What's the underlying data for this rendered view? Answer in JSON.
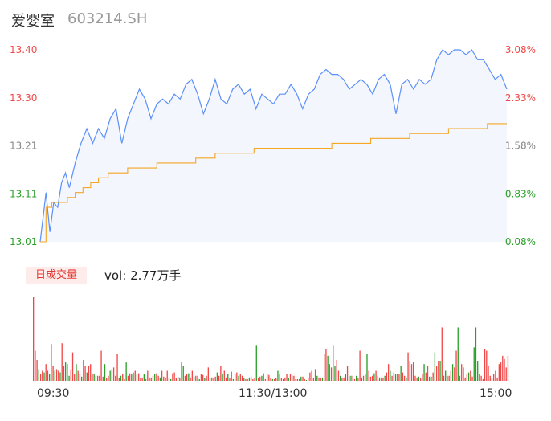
{
  "header": {
    "name": "爱婴室",
    "code": "603214.SH"
  },
  "volume_panel": {
    "tab_label": "日成交量",
    "vol_prefix": "vol:",
    "vol_value": "2.77万手"
  },
  "colors": {
    "price_line": "#5b8ff9",
    "avg_line": "#f5a623",
    "up": "#f04848",
    "down": "#2aa02a",
    "area_fill": "#f3f6fd"
  },
  "chart_data": [
    {
      "type": "line",
      "title": "",
      "base_price": 13.01,
      "y_left_ticks": [
        "13.40",
        "13.30",
        "13.21",
        "13.11",
        "13.01"
      ],
      "y_right_ticks": [
        "3.08%",
        "2.33%",
        "1.58%",
        "0.83%",
        "0.08%"
      ],
      "ylim": [
        13.01,
        13.4
      ],
      "x_tick_labels": [
        "09:30",
        "11:30/13:00",
        "15:00"
      ],
      "xlim": [
        0,
        240
      ],
      "series": [
        {
          "name": "",
          "role": "price",
          "x": [
            0,
            3,
            5,
            7,
            9,
            11,
            13,
            15,
            18,
            21,
            24,
            27,
            30,
            33,
            36,
            39,
            42,
            45,
            48,
            51,
            54,
            57,
            60,
            63,
            66,
            69,
            72,
            75,
            78,
            81,
            84,
            87,
            90,
            93,
            96,
            99,
            102,
            105,
            108,
            111,
            114,
            117,
            120,
            123,
            126,
            129,
            132,
            135,
            138,
            141,
            144,
            147,
            150,
            153,
            156,
            159,
            162,
            165,
            168,
            171,
            174,
            177,
            180,
            183,
            186,
            189,
            192,
            195,
            198,
            201,
            204,
            207,
            210,
            213,
            216,
            219,
            222,
            225,
            228,
            231,
            234,
            237,
            240
          ],
          "values": [
            13.01,
            13.11,
            13.03,
            13.09,
            13.08,
            13.13,
            13.15,
            13.12,
            13.17,
            13.21,
            13.24,
            13.21,
            13.24,
            13.22,
            13.26,
            13.28,
            13.21,
            13.26,
            13.29,
            13.32,
            13.3,
            13.26,
            13.29,
            13.3,
            13.29,
            13.31,
            13.3,
            13.33,
            13.34,
            13.31,
            13.27,
            13.3,
            13.34,
            13.3,
            13.29,
            13.32,
            13.33,
            13.31,
            13.32,
            13.28,
            13.31,
            13.3,
            13.29,
            13.31,
            13.31,
            13.33,
            13.31,
            13.28,
            13.31,
            13.32,
            13.35,
            13.36,
            13.35,
            13.35,
            13.34,
            13.32,
            13.33,
            13.34,
            13.33,
            13.31,
            13.34,
            13.35,
            13.33,
            13.27,
            13.33,
            13.34,
            13.32,
            13.34,
            13.33,
            13.34,
            13.38,
            13.4,
            13.39,
            13.4,
            13.4,
            13.39,
            13.4,
            13.38,
            13.38,
            13.36,
            13.34,
            13.35,
            13.32
          ]
        },
        {
          "name": "",
          "role": "average",
          "x": [
            0,
            3,
            6,
            10,
            14,
            18,
            22,
            26,
            30,
            35,
            40,
            45,
            50,
            60,
            70,
            80,
            90,
            100,
            110,
            120,
            130,
            140,
            150,
            160,
            170,
            180,
            190,
            200,
            210,
            220,
            230,
            240
          ],
          "values": [
            13.01,
            13.08,
            13.09,
            13.09,
            13.1,
            13.11,
            13.12,
            13.13,
            13.14,
            13.15,
            13.15,
            13.16,
            13.16,
            13.17,
            13.17,
            13.18,
            13.19,
            13.19,
            13.2,
            13.2,
            13.2,
            13.2,
            13.21,
            13.21,
            13.22,
            13.22,
            13.23,
            13.23,
            13.24,
            13.24,
            13.25,
            13.25
          ]
        }
      ]
    },
    {
      "type": "bar",
      "title": "",
      "ylim": [
        0,
        100
      ],
      "x_tick_labels": [
        "09:30",
        "11:30/13:00",
        "15:00"
      ],
      "values": [
        100,
        36,
        25,
        14,
        8,
        12,
        10,
        20,
        12,
        8,
        44,
        18,
        12,
        14,
        12,
        10,
        45,
        18,
        22,
        20,
        6,
        14,
        34,
        8,
        20,
        12,
        8,
        5,
        25,
        18,
        10,
        18,
        20,
        8,
        8,
        6,
        6,
        6,
        36,
        5,
        20,
        3,
        6,
        12,
        14,
        16,
        6,
        32,
        4,
        6,
        8,
        2,
        22,
        6,
        9,
        8,
        10,
        12,
        8,
        9,
        3,
        4,
        8,
        2,
        12,
        4,
        4,
        6,
        8,
        9,
        6,
        4,
        12,
        5,
        3,
        12,
        4,
        2,
        9,
        10,
        3,
        5,
        4,
        22,
        18,
        6,
        8,
        9,
        4,
        12,
        5,
        6,
        6,
        2,
        8,
        7,
        3,
        6,
        16,
        3,
        4,
        3,
        5,
        10,
        6,
        18,
        8,
        12,
        4,
        8,
        3,
        11,
        2,
        8,
        10,
        6,
        8,
        6,
        3,
        2,
        2,
        4,
        5,
        2,
        3,
        42,
        3,
        5,
        6,
        9,
        2,
        8,
        7,
        4,
        2,
        2,
        3,
        12,
        8,
        3,
        2,
        4,
        8,
        3,
        8,
        6,
        6,
        2,
        2,
        2,
        5,
        5,
        2,
        1,
        4,
        10,
        12,
        3,
        14,
        6,
        4,
        3,
        4,
        32,
        38,
        30,
        20,
        16,
        42,
        18,
        25,
        12,
        6,
        3,
        4,
        8,
        18,
        6,
        6,
        6,
        2,
        6,
        3,
        36,
        4,
        6,
        8,
        32,
        12,
        5,
        6,
        9,
        12,
        6,
        4,
        4,
        4,
        6,
        10,
        20,
        12,
        6,
        10,
        8,
        8,
        8,
        18,
        10,
        6,
        4,
        34,
        24,
        20,
        22,
        6,
        4,
        5,
        3,
        8,
        20,
        10,
        18,
        5,
        5,
        10,
        34,
        18,
        24,
        24,
        64,
        6,
        12,
        6,
        6,
        12,
        20,
        16,
        36,
        64,
        6,
        20,
        16,
        4,
        8,
        10,
        12,
        5,
        40,
        64,
        24,
        8,
        6,
        2,
        38,
        36,
        18,
        6,
        3,
        8,
        12,
        4,
        20,
        22,
        30,
        26,
        16,
        30
      ],
      "directions": [
        "u",
        "u",
        "u",
        "d",
        "u",
        "u",
        "d",
        "u",
        "u",
        "d",
        "u",
        "u",
        "d",
        "u",
        "u",
        "d",
        "u",
        "u",
        "d",
        "u",
        "d",
        "u",
        "u",
        "u",
        "d",
        "u",
        "u",
        "d",
        "u",
        "u",
        "d",
        "u",
        "u",
        "u",
        "d",
        "u",
        "u",
        "d",
        "u",
        "u",
        "d",
        "u",
        "u",
        "d",
        "u",
        "u",
        "d",
        "u",
        "u",
        "d",
        "u",
        "u",
        "d",
        "u",
        "u",
        "d",
        "u",
        "u",
        "d",
        "u",
        "u",
        "u",
        "d",
        "u",
        "u",
        "d",
        "u",
        "u",
        "d",
        "u",
        "u",
        "d",
        "u",
        "u",
        "d",
        "u",
        "u",
        "d",
        "u",
        "u",
        "u",
        "d",
        "u",
        "u",
        "d",
        "u",
        "u",
        "d",
        "u",
        "u",
        "d",
        "u",
        "u",
        "d",
        "u",
        "u",
        "d",
        "u",
        "u",
        "d",
        "u",
        "u",
        "u",
        "d",
        "u",
        "u",
        "d",
        "u",
        "u",
        "d",
        "u",
        "u",
        "d",
        "u",
        "u",
        "d",
        "u",
        "u",
        "d",
        "u",
        "u",
        "d",
        "u",
        "u",
        "u",
        "d",
        "u",
        "u",
        "d",
        "u",
        "u",
        "d",
        "u",
        "u",
        "d",
        "u",
        "u",
        "d",
        "u",
        "u",
        "d",
        "u",
        "u",
        "d",
        "u",
        "u",
        "u",
        "d",
        "u",
        "u",
        "d",
        "u",
        "u",
        "d",
        "u",
        "u",
        "d",
        "u",
        "u",
        "d",
        "u",
        "u",
        "d",
        "u",
        "u",
        "d",
        "u",
        "u",
        "u",
        "d",
        "u",
        "u",
        "d",
        "u",
        "u",
        "d",
        "u",
        "u",
        "d",
        "u",
        "u",
        "d",
        "u",
        "u",
        "d",
        "u",
        "u",
        "d",
        "u",
        "u",
        "u",
        "d",
        "u",
        "u",
        "d",
        "u",
        "u",
        "d",
        "u",
        "u",
        "d",
        "u",
        "u",
        "d",
        "u",
        "u",
        "d",
        "u",
        "u",
        "d",
        "u",
        "u",
        "u",
        "d",
        "u",
        "u",
        "d",
        "u",
        "u",
        "d",
        "u",
        "u",
        "d",
        "u",
        "u",
        "d",
        "u",
        "u",
        "d",
        "u",
        "u",
        "d",
        "u",
        "u",
        "u",
        "d",
        "u",
        "u",
        "d",
        "u",
        "u",
        "d",
        "u",
        "u",
        "d",
        "u",
        "u",
        "d",
        "d",
        "d",
        "d",
        "u"
      ]
    }
  ]
}
